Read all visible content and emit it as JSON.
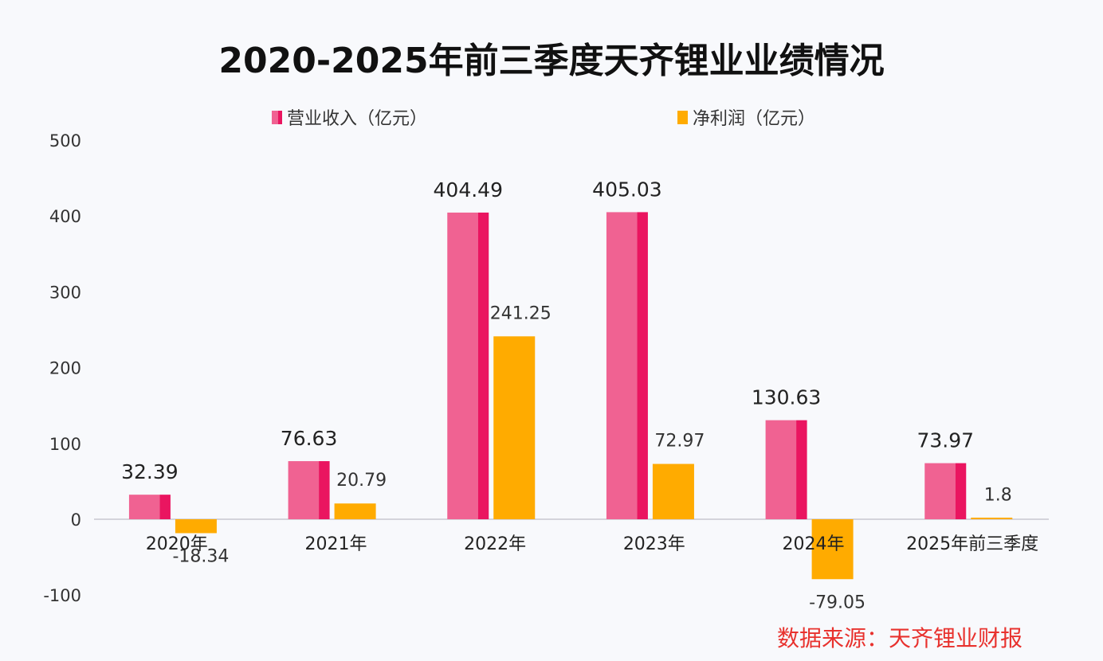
{
  "chart_data": {
    "type": "bar",
    "title": "2020-2025年前三季度天齐锂业业绩情况",
    "categories": [
      "2020年",
      "2021年",
      "2022年",
      "2023年",
      "2024年",
      "2025年前三季度"
    ],
    "series": [
      {
        "name": "营业收入（亿元）",
        "color": "#f06292",
        "side_color": "#ea1560",
        "values": [
          32.39,
          76.63,
          404.49,
          405.03,
          130.63,
          73.97
        ],
        "labels": [
          "32.39",
          "76.63",
          "404.49",
          "405.03",
          "130.63",
          "73.97"
        ]
      },
      {
        "name": "净利润（亿元）",
        "color": "#ffab00",
        "values": [
          -18.34,
          20.79,
          241.25,
          72.97,
          -79.05,
          1.8
        ],
        "labels": [
          "-18.34",
          "20.79",
          "241.25",
          "72.97",
          "-79.05",
          "1.8"
        ]
      }
    ],
    "ylim": [
      -100,
      500
    ],
    "yticks": [
      "500",
      "400",
      "300",
      "200",
      "100",
      "0",
      "-100"
    ],
    "ytick_values": [
      500,
      400,
      300,
      200,
      100,
      0,
      -100
    ],
    "xlabel": "",
    "ylabel": "",
    "grid": false,
    "legend_position": "top",
    "source_note": "数据来源：天齐锂业财报"
  }
}
